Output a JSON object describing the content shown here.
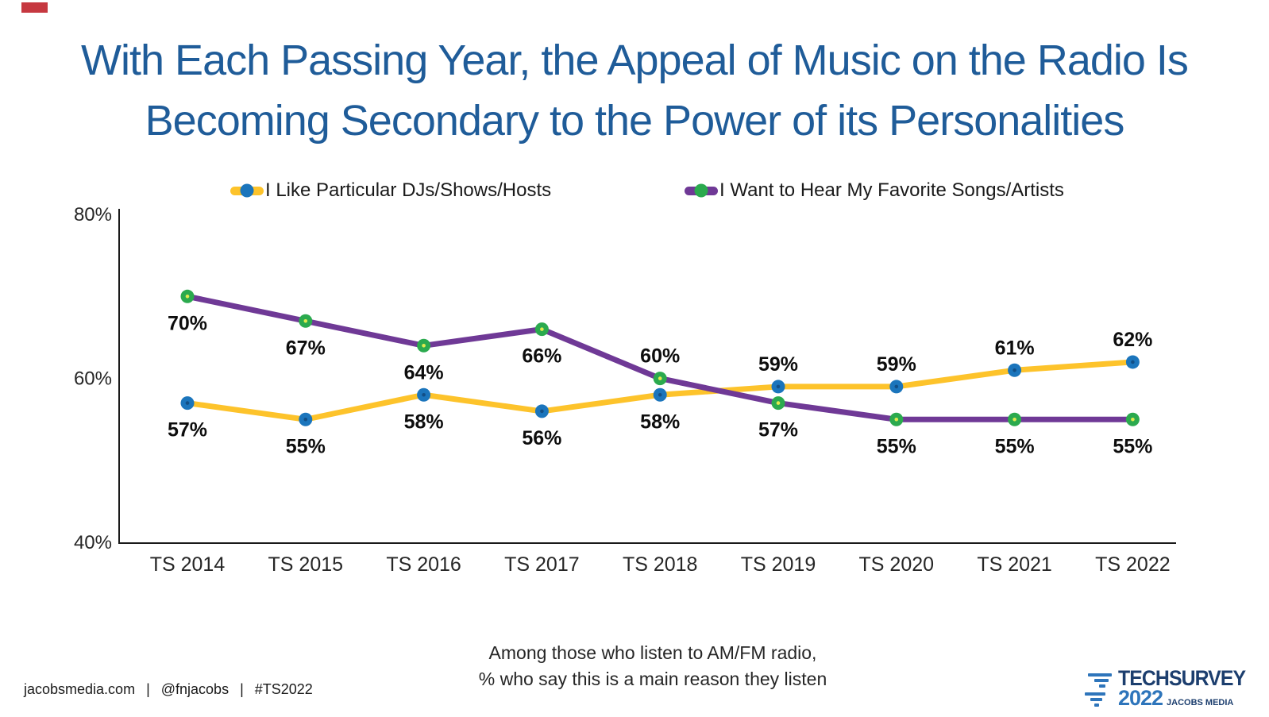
{
  "slide": {
    "title_line1": "With Each Passing Year, the Appeal of Music on the Radio Is",
    "title_line2": "Becoming Secondary to the Power of its Personalities",
    "title_color": "#1F5C99",
    "red_marker_color": "#C63840"
  },
  "chart_data": {
    "type": "line",
    "title": "",
    "categories": [
      "TS 2014",
      "TS 2015",
      "TS 2016",
      "TS 2017",
      "TS 2018",
      "TS 2019",
      "TS 2020",
      "TS 2021",
      "TS 2022"
    ],
    "series": [
      {
        "name": "I Like Particular DJs/Shows/Hosts",
        "values": [
          57,
          55,
          58,
          56,
          58,
          59,
          59,
          61,
          62
        ],
        "line_color": "#FDC32B",
        "marker_color": "#1B75BC",
        "marker_center_color": "#124F86",
        "label_side": [
          "below",
          "below",
          "below",
          "below",
          "below",
          "above",
          "above",
          "above",
          "above"
        ]
      },
      {
        "name": "I Want to Hear My Favorite Songs/Artists",
        "values": [
          70,
          67,
          64,
          66,
          60,
          57,
          55,
          55,
          55
        ],
        "line_color": "#6F3996",
        "marker_color": "#2BAA4E",
        "marker_center_color": "#E2EA4F",
        "label_side": [
          "below",
          "below",
          "below",
          "below",
          "above",
          "below",
          "below",
          "below",
          "below"
        ]
      }
    ],
    "ylim": [
      40,
      80
    ],
    "yticks": [
      {
        "label": "80%",
        "value": 80
      },
      {
        "label": "60%",
        "value": 60
      },
      {
        "label": "40%",
        "value": 40
      }
    ],
    "grid": false,
    "legend_position": "top",
    "axis_color": "#1a1a1a",
    "label_color": "#0d0d0d",
    "tick_color": "#262626"
  },
  "caption": {
    "line1": "Among those who listen to AM/FM radio,",
    "line2": "% who say this is a main reason they listen"
  },
  "footer": {
    "site": "jacobsmedia.com",
    "separator": "|",
    "handle": "@fnjacobs",
    "hashtag": "#TS2022"
  },
  "logo": {
    "brand": "TECHSURVEY",
    "year": "2022",
    "company": "JACOBS MEDIA",
    "brand_color": "#1C3E6E",
    "year_color": "#2E75BB"
  }
}
